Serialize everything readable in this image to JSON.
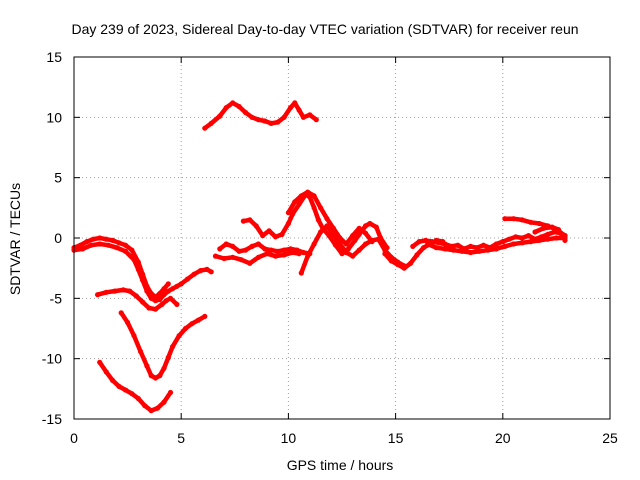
{
  "chart_data": {
    "type": "scatter",
    "title": "Day 239 of 2023, Sidereal Day-to-day VTEC variation (SDTVAR) for receiver reun",
    "xlabel": "GPS time / hours",
    "ylabel": "SDTVAR / TECUs",
    "xlim": [
      0,
      25
    ],
    "ylim": [
      -15,
      15
    ],
    "xticks": [
      "0",
      "5",
      "10",
      "15",
      "20",
      "25"
    ],
    "yticks": [
      "-15",
      "-10",
      "-5",
      "0",
      "5",
      "10",
      "15"
    ],
    "grid": true,
    "color": "#ff0000",
    "series": [
      {
        "name": "arc-1",
        "points": [
          [
            0,
            -0.8
          ],
          [
            0.3,
            -0.6
          ],
          [
            0.6,
            -0.3
          ],
          [
            0.9,
            -0.1
          ],
          [
            1.2,
            0.0
          ],
          [
            1.5,
            -0.1
          ],
          [
            1.8,
            -0.2
          ],
          [
            2.1,
            -0.4
          ],
          [
            2.4,
            -0.6
          ],
          [
            2.7,
            -1.0
          ],
          [
            3.0,
            -2.0
          ],
          [
            3.2,
            -3.0
          ],
          [
            3.4,
            -4.0
          ],
          [
            3.6,
            -4.6
          ],
          [
            3.8,
            -4.9
          ],
          [
            4.0,
            -4.6
          ],
          [
            4.2,
            -4.2
          ],
          [
            4.4,
            -3.8
          ]
        ]
      },
      {
        "name": "arc-2",
        "points": [
          [
            0,
            -1.0
          ],
          [
            0.4,
            -0.9
          ],
          [
            0.8,
            -0.6
          ],
          [
            1.2,
            -0.5
          ],
          [
            1.6,
            -0.6
          ],
          [
            2.0,
            -0.8
          ],
          [
            2.4,
            -1.1
          ],
          [
            2.8,
            -1.8
          ],
          [
            3.0,
            -2.6
          ],
          [
            3.2,
            -3.5
          ],
          [
            3.4,
            -4.4
          ],
          [
            3.6,
            -5.0
          ],
          [
            3.8,
            -5.2
          ],
          [
            4.0,
            -5.1
          ],
          [
            4.2,
            -4.7
          ],
          [
            4.4,
            -4.4
          ],
          [
            4.6,
            -4.2
          ],
          [
            4.8,
            -4.0
          ],
          [
            5.0,
            -3.8
          ],
          [
            5.3,
            -3.4
          ],
          [
            5.6,
            -3.0
          ],
          [
            5.9,
            -2.7
          ],
          [
            6.2,
            -2.6
          ],
          [
            6.4,
            -2.8
          ]
        ]
      },
      {
        "name": "arc-3",
        "points": [
          [
            1.1,
            -4.7
          ],
          [
            1.5,
            -4.5
          ],
          [
            1.9,
            -4.4
          ],
          [
            2.3,
            -4.3
          ],
          [
            2.6,
            -4.4
          ],
          [
            2.9,
            -4.8
          ],
          [
            3.2,
            -5.3
          ],
          [
            3.5,
            -5.8
          ],
          [
            3.8,
            -5.9
          ],
          [
            4.1,
            -5.5
          ],
          [
            4.3,
            -5.2
          ],
          [
            4.5,
            -5.0
          ],
          [
            4.8,
            -5.5
          ]
        ]
      },
      {
        "name": "arc-4",
        "points": [
          [
            2.2,
            -6.2
          ],
          [
            2.5,
            -7.0
          ],
          [
            2.8,
            -8.1
          ],
          [
            3.1,
            -9.4
          ],
          [
            3.4,
            -10.6
          ],
          [
            3.6,
            -11.4
          ],
          [
            3.8,
            -11.6
          ],
          [
            4.0,
            -11.4
          ],
          [
            4.2,
            -10.8
          ],
          [
            4.4,
            -9.9
          ],
          [
            4.6,
            -9.0
          ],
          [
            4.9,
            -8.1
          ],
          [
            5.2,
            -7.5
          ],
          [
            5.5,
            -7.1
          ],
          [
            5.8,
            -6.8
          ],
          [
            6.1,
            -6.5
          ]
        ]
      },
      {
        "name": "arc-5",
        "points": [
          [
            1.2,
            -10.3
          ],
          [
            1.5,
            -11.1
          ],
          [
            1.8,
            -11.8
          ],
          [
            2.1,
            -12.3
          ],
          [
            2.4,
            -12.6
          ],
          [
            2.7,
            -12.9
          ],
          [
            3.0,
            -13.3
          ],
          [
            3.3,
            -13.9
          ],
          [
            3.6,
            -14.3
          ],
          [
            3.9,
            -14.1
          ],
          [
            4.2,
            -13.6
          ],
          [
            4.5,
            -12.8
          ]
        ]
      },
      {
        "name": "arc-6",
        "points": [
          [
            6.1,
            9.1
          ],
          [
            6.4,
            9.5
          ],
          [
            6.8,
            10.1
          ],
          [
            7.1,
            10.8
          ],
          [
            7.4,
            11.2
          ],
          [
            7.7,
            10.9
          ],
          [
            8.0,
            10.4
          ],
          [
            8.3,
            10.0
          ],
          [
            8.6,
            9.8
          ],
          [
            8.9,
            9.7
          ],
          [
            9.2,
            9.5
          ],
          [
            9.5,
            9.6
          ],
          [
            9.8,
            10.0
          ],
          [
            10.1,
            10.8
          ],
          [
            10.3,
            11.2
          ],
          [
            10.5,
            10.6
          ],
          [
            10.7,
            10.0
          ],
          [
            11.0,
            10.2
          ],
          [
            11.3,
            9.8
          ]
        ]
      },
      {
        "name": "arc-7",
        "points": [
          [
            6.8,
            -0.9
          ],
          [
            7.1,
            -0.5
          ],
          [
            7.4,
            -0.7
          ],
          [
            7.7,
            -1.1
          ],
          [
            8.0,
            -1.0
          ],
          [
            8.3,
            -0.7
          ],
          [
            8.6,
            -0.5
          ],
          [
            8.9,
            -0.9
          ],
          [
            9.2,
            -1.0
          ],
          [
            9.5,
            -1.1
          ],
          [
            9.8,
            -1.0
          ],
          [
            10.1,
            -0.9
          ],
          [
            10.4,
            -1.0
          ],
          [
            10.7,
            -1.2
          ],
          [
            11.0,
            -1.3
          ]
        ]
      },
      {
        "name": "arc-8",
        "points": [
          [
            6.6,
            -1.5
          ],
          [
            7.0,
            -1.7
          ],
          [
            7.4,
            -1.6
          ],
          [
            7.8,
            -1.8
          ],
          [
            8.2,
            -2.1
          ],
          [
            8.6,
            -1.6
          ],
          [
            9.0,
            -1.3
          ],
          [
            9.4,
            -1.5
          ],
          [
            9.8,
            -1.4
          ],
          [
            10.2,
            -1.2
          ],
          [
            10.5,
            -1.3
          ]
        ]
      },
      {
        "name": "arc-9",
        "points": [
          [
            7.9,
            1.4
          ],
          [
            8.2,
            1.5
          ],
          [
            8.5,
            1.0
          ],
          [
            8.8,
            0.2
          ],
          [
            9.1,
            0.6
          ],
          [
            9.4,
            0.1
          ],
          [
            9.7,
            0.3
          ],
          [
            10.0,
            1.2
          ],
          [
            10.2,
            2.0
          ],
          [
            10.5,
            2.8
          ],
          [
            10.8,
            3.6
          ],
          [
            11.0,
            3.4
          ],
          [
            11.2,
            2.5
          ],
          [
            11.4,
            1.5
          ],
          [
            11.6,
            0.8
          ],
          [
            11.9,
            0.2
          ],
          [
            12.2,
            -0.6
          ],
          [
            12.5,
            -1.3
          ],
          [
            12.8,
            -0.9
          ],
          [
            13.1,
            -0.2
          ],
          [
            13.3,
            0.3
          ],
          [
            13.6,
            1.0
          ],
          [
            13.8,
            1.2
          ],
          [
            14.1,
            0.9
          ],
          [
            14.3,
            0.0
          ],
          [
            14.6,
            -0.8
          ]
        ]
      },
      {
        "name": "arc-10",
        "points": [
          [
            10.0,
            2.1
          ],
          [
            10.3,
            3.0
          ],
          [
            10.6,
            3.5
          ],
          [
            10.9,
            3.8
          ],
          [
            11.2,
            3.5
          ],
          [
            11.5,
            2.5
          ],
          [
            11.8,
            1.6
          ],
          [
            12.1,
            0.8
          ],
          [
            12.4,
            0.0
          ],
          [
            12.7,
            -0.5
          ],
          [
            13.0,
            0.2
          ],
          [
            13.3,
            0.8
          ],
          [
            13.6,
            0.4
          ],
          [
            13.9,
            -0.3
          ]
        ]
      },
      {
        "name": "arc-11",
        "points": [
          [
            10.6,
            -2.9
          ],
          [
            10.9,
            -1.5
          ],
          [
            11.2,
            -0.5
          ],
          [
            11.5,
            0.5
          ],
          [
            11.8,
            1.0
          ],
          [
            12.1,
            0.3
          ],
          [
            12.4,
            -0.5
          ],
          [
            12.7,
            -1.2
          ],
          [
            13.0,
            -1.5
          ],
          [
            13.3,
            -1.0
          ],
          [
            13.6,
            -0.5
          ],
          [
            13.9,
            -0.2
          ],
          [
            14.2,
            -0.1
          ],
          [
            14.5,
            -1.0
          ],
          [
            14.8,
            -1.6
          ],
          [
            15.1,
            -2.0
          ],
          [
            15.4,
            -2.3
          ]
        ]
      },
      {
        "name": "arc-12",
        "points": [
          [
            14.5,
            -1.3
          ],
          [
            14.8,
            -1.9
          ],
          [
            15.1,
            -2.2
          ],
          [
            15.4,
            -2.5
          ],
          [
            15.7,
            -2.1
          ],
          [
            16.0,
            -1.4
          ],
          [
            16.3,
            -0.8
          ],
          [
            16.6,
            -0.5
          ],
          [
            16.9,
            -0.2
          ],
          [
            17.2,
            -0.3
          ]
        ]
      },
      {
        "name": "arc-13",
        "points": [
          [
            15.8,
            -0.7
          ],
          [
            16.1,
            -0.3
          ],
          [
            16.4,
            -0.2
          ],
          [
            16.7,
            -0.3
          ],
          [
            17.0,
            -0.4
          ],
          [
            17.3,
            -0.5
          ],
          [
            17.6,
            -0.7
          ],
          [
            17.9,
            -0.6
          ],
          [
            18.2,
            -0.9
          ],
          [
            18.5,
            -0.7
          ],
          [
            18.8,
            -0.8
          ],
          [
            19.1,
            -0.6
          ],
          [
            19.4,
            -0.8
          ],
          [
            19.7,
            -0.5
          ],
          [
            20.0,
            -0.3
          ],
          [
            20.3,
            -0.1
          ],
          [
            20.6,
            0.1
          ],
          [
            20.9,
            0.0
          ],
          [
            21.2,
            0.2
          ],
          [
            21.5,
            -0.1
          ],
          [
            21.8,
            0.1
          ],
          [
            22.1,
            0.3
          ],
          [
            22.4,
            0.5
          ],
          [
            22.7,
            0.4
          ],
          [
            22.9,
            0.2
          ]
        ]
      },
      {
        "name": "arc-14",
        "points": [
          [
            16.5,
            -0.5
          ],
          [
            16.9,
            -0.8
          ],
          [
            17.3,
            -0.9
          ],
          [
            17.7,
            -1.0
          ],
          [
            18.1,
            -1.1
          ],
          [
            18.5,
            -1.2
          ],
          [
            18.9,
            -1.1
          ],
          [
            19.3,
            -1.0
          ],
          [
            19.7,
            -0.9
          ],
          [
            20.1,
            -0.7
          ],
          [
            20.5,
            -0.5
          ],
          [
            20.9,
            -0.4
          ],
          [
            21.3,
            -0.3
          ],
          [
            21.7,
            -0.2
          ],
          [
            22.1,
            -0.1
          ],
          [
            22.5,
            0.0
          ],
          [
            22.9,
            0.0
          ]
        ]
      },
      {
        "name": "arc-15",
        "points": [
          [
            20.1,
            1.6
          ],
          [
            20.5,
            1.6
          ],
          [
            20.9,
            1.5
          ],
          [
            21.3,
            1.3
          ],
          [
            21.7,
            1.2
          ],
          [
            22.1,
            1.0
          ],
          [
            22.5,
            0.7
          ],
          [
            22.9,
            0.2
          ]
        ]
      },
      {
        "name": "arc-16",
        "points": [
          [
            21.5,
            0.5
          ],
          [
            21.9,
            0.8
          ],
          [
            22.3,
            0.9
          ],
          [
            22.6,
            0.7
          ],
          [
            22.9,
            -0.2
          ]
        ]
      }
    ]
  }
}
